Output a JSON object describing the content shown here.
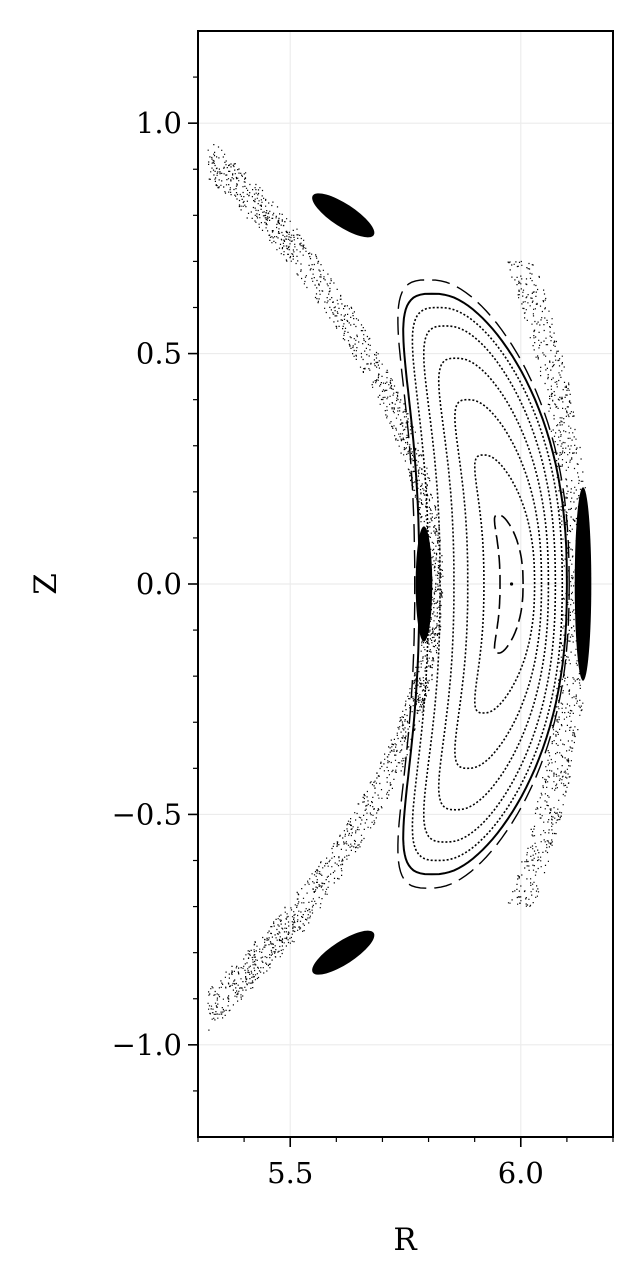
{
  "chart_data": {
    "type": "scatter",
    "title": "",
    "xlabel": "R",
    "ylabel": "Z",
    "xlim": [
      5.3,
      6.2
    ],
    "ylim": [
      -1.2,
      1.2
    ],
    "grid": true,
    "legend": "none",
    "x_ticks": [
      {
        "value": 5.5,
        "label": "5.5"
      },
      {
        "value": 6.0,
        "label": "6.0"
      }
    ],
    "x_minor_ticks": [
      5.3,
      5.4,
      5.6,
      5.7,
      5.8,
      5.9,
      6.1,
      6.2
    ],
    "y_ticks": [
      {
        "value": 1.0,
        "label": "1.0"
      },
      {
        "value": 0.5,
        "label": "0.5"
      },
      {
        "value": 0.0,
        "label": "0.0"
      },
      {
        "value": -0.5,
        "label": "−0.5"
      },
      {
        "value": -1.0,
        "label": "−1.0"
      }
    ],
    "y_minor_ticks": [
      -1.1,
      -0.9,
      -0.8,
      -0.7,
      -0.6,
      -0.4,
      -0.3,
      -0.2,
      -0.1,
      0.1,
      0.2,
      0.3,
      0.4,
      0.6,
      0.7,
      0.8,
      0.9,
      1.1
    ],
    "magnetic_axis": {
      "r": 5.98,
      "z": 0.0
    },
    "nested_surfaces": [
      {
        "name": "surface-1",
        "r_in": 5.955,
        "r_out": 6.005,
        "z_half": 0.15,
        "style": "dashed"
      },
      {
        "name": "surface-2",
        "r_in": 5.92,
        "r_out": 6.03,
        "z_half": 0.28,
        "style": "dotted"
      },
      {
        "name": "surface-3",
        "r_in": 5.885,
        "r_out": 6.045,
        "z_half": 0.4,
        "style": "dotted"
      },
      {
        "name": "surface-4",
        "r_in": 5.855,
        "r_out": 6.06,
        "z_half": 0.49,
        "style": "dotted"
      },
      {
        "name": "surface-5",
        "r_in": 5.825,
        "r_out": 6.075,
        "z_half": 0.56,
        "style": "dotted"
      },
      {
        "name": "surface-6",
        "r_in": 5.8,
        "r_out": 6.09,
        "z_half": 0.6,
        "style": "dotted"
      },
      {
        "name": "surface-7",
        "r_in": 5.78,
        "r_out": 6.1,
        "z_half": 0.63,
        "style": "solid"
      }
    ],
    "island_chains": [
      {
        "name": "island-top",
        "r": 5.615,
        "z": 0.8,
        "length": 0.15,
        "width": 0.025,
        "angle_deg": -33
      },
      {
        "name": "island-inboard",
        "r": 5.79,
        "z": 0.0,
        "length": 0.25,
        "width": 0.018,
        "angle_deg": 90
      },
      {
        "name": "island-outboard",
        "r": 6.135,
        "z": 0.0,
        "length": 0.42,
        "width": 0.018,
        "angle_deg": 90
      },
      {
        "name": "island-bottom",
        "r": 5.615,
        "z": -0.8,
        "length": 0.15,
        "width": 0.025,
        "angle_deg": 33
      }
    ],
    "chaotic_layer": {
      "description": "stochastic field-line points surrounding the last closed surface",
      "r_range": [
        5.33,
        6.19
      ],
      "z_range": [
        -1.05,
        1.05
      ]
    }
  }
}
